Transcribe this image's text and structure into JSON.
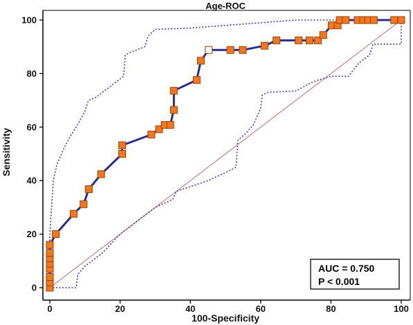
{
  "chart_data": {
    "type": "line",
    "title": "Age-ROC",
    "xlabel": "100-Specificity",
    "ylabel": "Sensitivity",
    "xlim": [
      0,
      100
    ],
    "ylim": [
      0,
      100
    ],
    "x_ticks": [
      "0",
      "20",
      "40",
      "60",
      "80",
      "100"
    ],
    "y_ticks": [
      "0",
      "20",
      "40",
      "60",
      "80",
      "100"
    ],
    "grid": false,
    "colors": {
      "roc_line": "#2b2b8f",
      "marker_fill": "#f07820",
      "marker_stroke": "#9c3d00",
      "ci_line": "#3a3ac0",
      "reference_line": "#c86a6a"
    },
    "series": [
      {
        "type": "roc",
        "points": [
          [
            0,
            0
          ],
          [
            0,
            2
          ],
          [
            0,
            4
          ],
          [
            0,
            7
          ],
          [
            0,
            9
          ],
          [
            0,
            11
          ],
          [
            0,
            13
          ],
          [
            0,
            16
          ],
          [
            1.7,
            20
          ],
          [
            6.8,
            27.6
          ],
          [
            9.6,
            31.2
          ],
          [
            11.1,
            36.8
          ],
          [
            14.6,
            42.4
          ],
          [
            20.6,
            50
          ],
          [
            20.6,
            53.2
          ],
          [
            28.9,
            57.2
          ],
          [
            31.1,
            59.2
          ],
          [
            32.7,
            60.8
          ],
          [
            34.3,
            60.8
          ],
          [
            35.3,
            66.4
          ],
          [
            35.3,
            73.6
          ],
          [
            41.8,
            77.6
          ],
          [
            43,
            84.8
          ],
          [
            45.2,
            88.8
          ],
          [
            51.4,
            88.8
          ],
          [
            54.9,
            88.8
          ],
          [
            61.1,
            90.4
          ],
          [
            64.5,
            92.4
          ],
          [
            70.8,
            92.4
          ],
          [
            73.9,
            92.4
          ],
          [
            76.3,
            92.4
          ],
          [
            77.8,
            94.4
          ],
          [
            80.2,
            98
          ],
          [
            81.9,
            98
          ],
          [
            82.5,
            100
          ],
          [
            84.2,
            100
          ],
          [
            87.6,
            100
          ],
          [
            89.2,
            100
          ],
          [
            90.6,
            100
          ],
          [
            92.2,
            100
          ],
          [
            98,
            100
          ],
          [
            100,
            100
          ]
        ],
        "open_marker_index": 23
      },
      {
        "type": "ci_upper",
        "points": [
          [
            0,
            0
          ],
          [
            0,
            20
          ],
          [
            0.5,
            30
          ],
          [
            1,
            40
          ],
          [
            2,
            46
          ],
          [
            4,
            52
          ],
          [
            6,
            57
          ],
          [
            8,
            61
          ],
          [
            10,
            66
          ],
          [
            11,
            70
          ],
          [
            13,
            71
          ],
          [
            15,
            73
          ],
          [
            17,
            75
          ],
          [
            19,
            77
          ],
          [
            21,
            79
          ],
          [
            21.5,
            87
          ],
          [
            23,
            88
          ],
          [
            25,
            89
          ],
          [
            27,
            90
          ],
          [
            28,
            94
          ],
          [
            30,
            96.5
          ],
          [
            40,
            97
          ],
          [
            50,
            98
          ],
          [
            60,
            99
          ],
          [
            70,
            100
          ],
          [
            100,
            100
          ]
        ]
      },
      {
        "type": "ci_lower",
        "points": [
          [
            0,
            0
          ],
          [
            7.5,
            0
          ],
          [
            8,
            5
          ],
          [
            10,
            8
          ],
          [
            15,
            13
          ],
          [
            20,
            20
          ],
          [
            25,
            25
          ],
          [
            30,
            30
          ],
          [
            35,
            33
          ],
          [
            36,
            36
          ],
          [
            45,
            40
          ],
          [
            50,
            43
          ],
          [
            53,
            45
          ],
          [
            53.5,
            55
          ],
          [
            56,
            58
          ],
          [
            58,
            61
          ],
          [
            60,
            67
          ],
          [
            60.5,
            72
          ],
          [
            62,
            73
          ],
          [
            70,
            73.5
          ],
          [
            75,
            77
          ],
          [
            80,
            79
          ],
          [
            85,
            79
          ],
          [
            88,
            84
          ],
          [
            91,
            87
          ],
          [
            92,
            91
          ],
          [
            100,
            91
          ],
          [
            100,
            100
          ]
        ]
      },
      {
        "type": "reference",
        "points": [
          [
            0,
            0
          ],
          [
            100,
            100
          ]
        ]
      }
    ],
    "annotations": {
      "auc": "AUC = 0.750",
      "p": "P < 0.001"
    }
  }
}
